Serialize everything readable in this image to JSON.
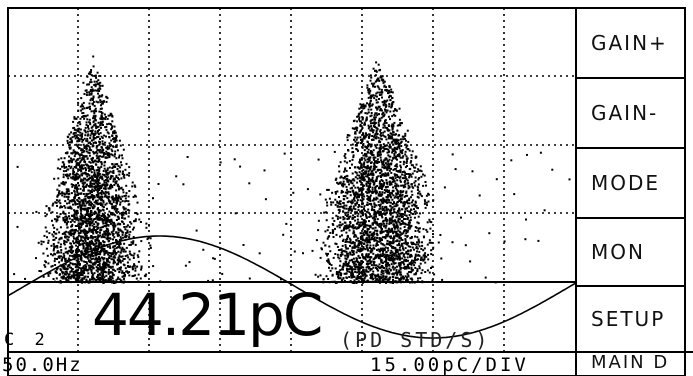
{
  "softkeys": {
    "gain_plus": "GAIN+",
    "gain_minus": "GAIN-",
    "mode": "MODE",
    "mon": "MON",
    "setup": "SETUP",
    "main": "MAIN D"
  },
  "readout": {
    "value": "44.21pC",
    "mode": "(PD STD/S)",
    "channel": "C 2",
    "frequency": "50.0Hz",
    "scale": "15.00pC/DIV"
  },
  "display": {
    "grid_style": "dotted",
    "trace": "sine reference with scattered PD pulse clusters"
  }
}
